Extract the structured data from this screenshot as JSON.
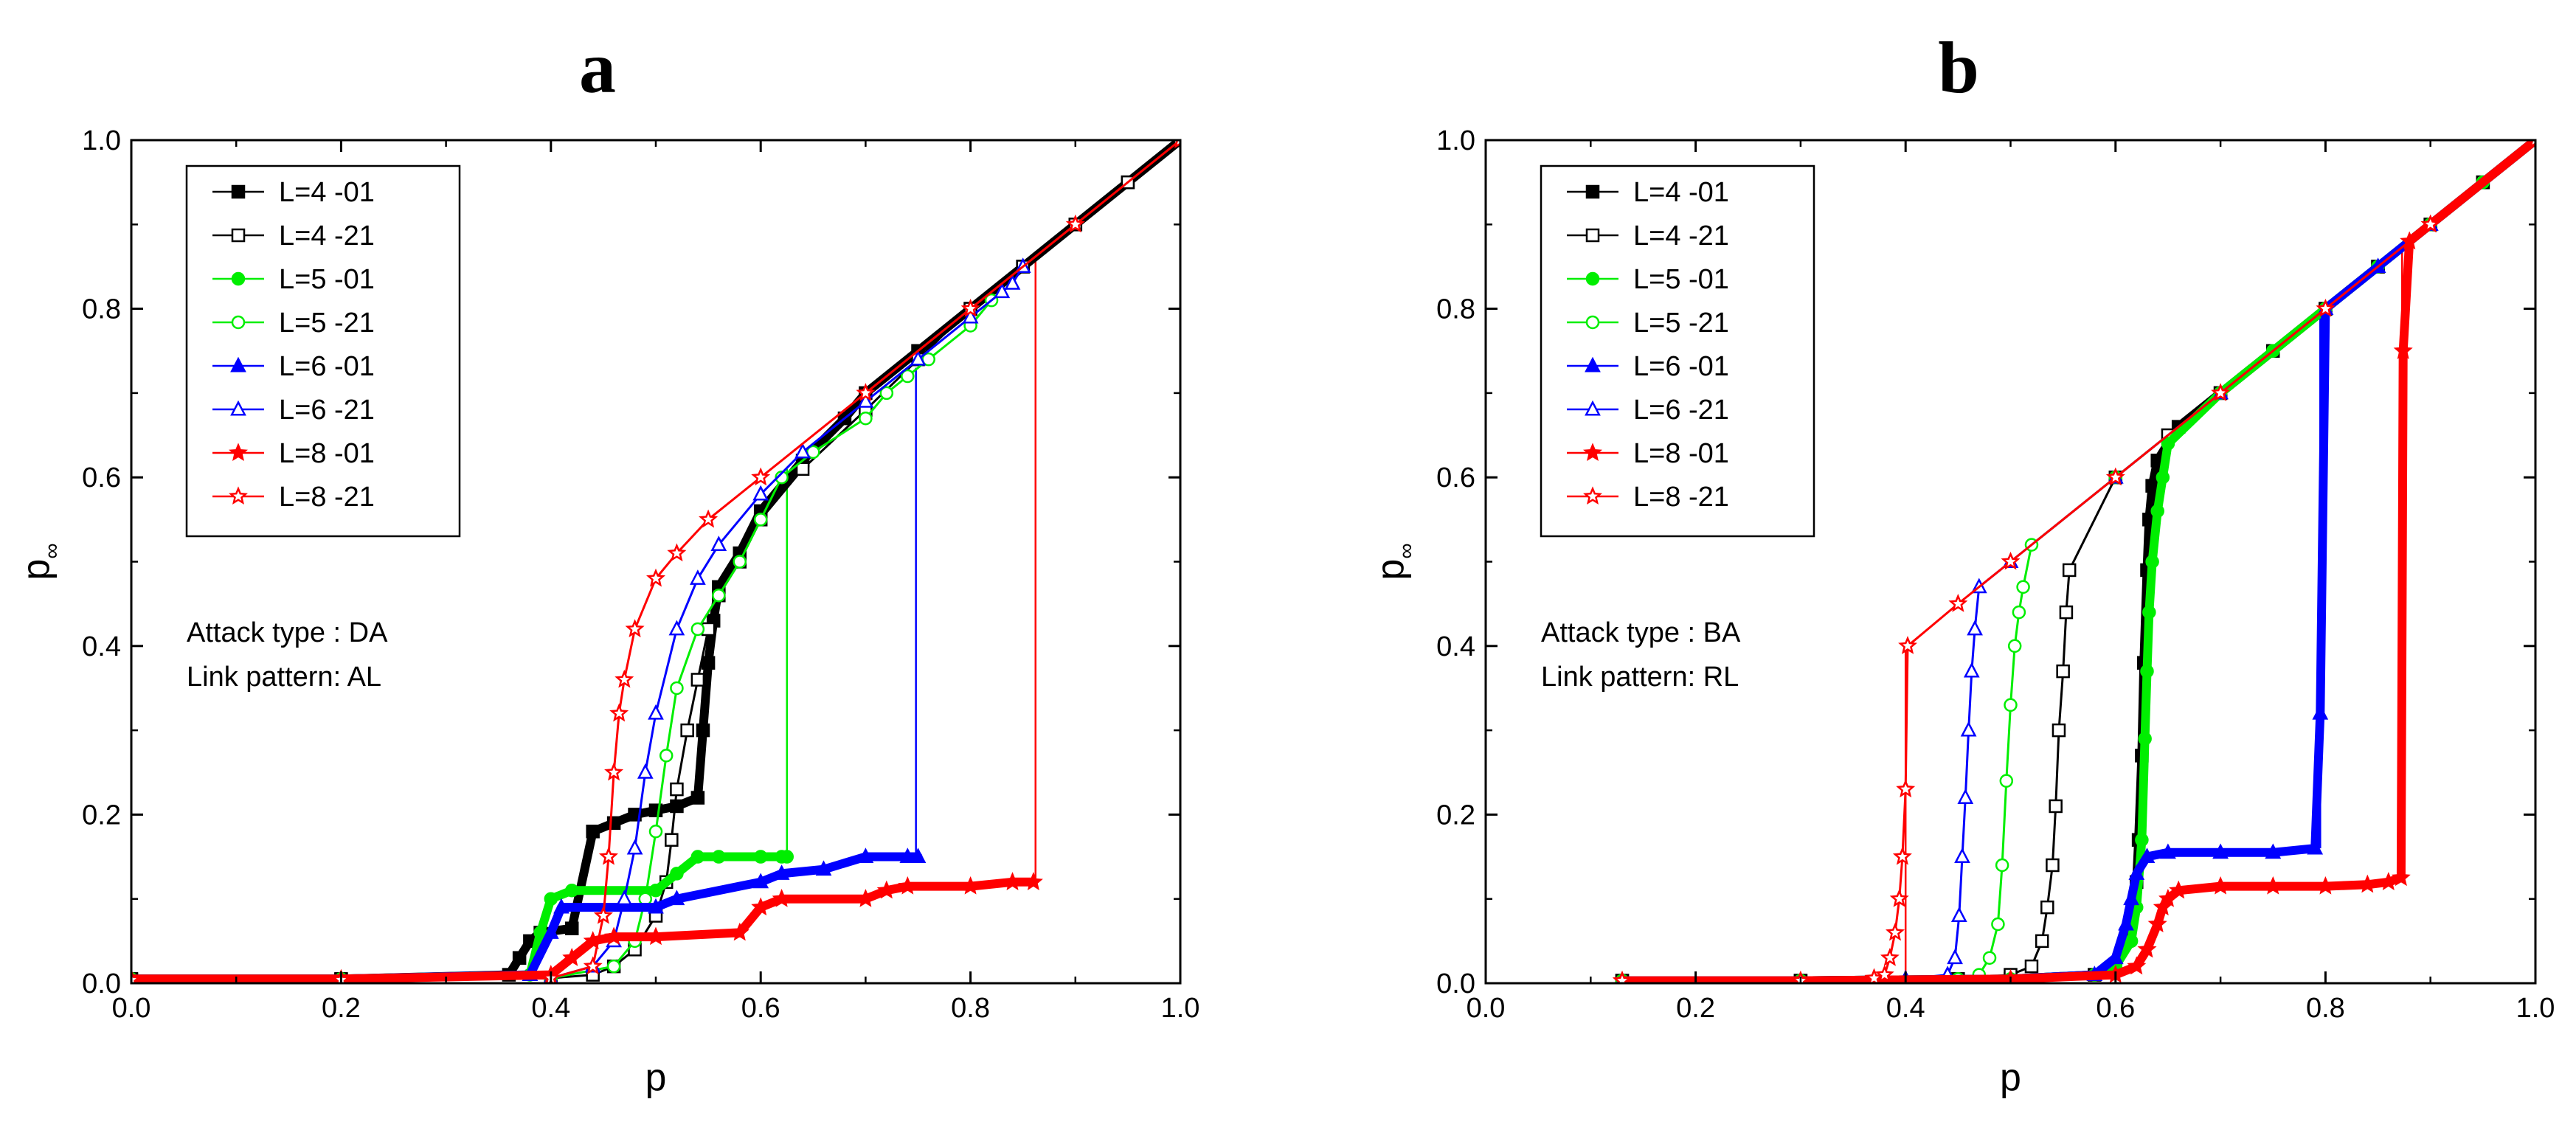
{
  "chart_data": [
    {
      "type": "line",
      "panel_label": "a",
      "xlabel": "p",
      "ylabel": "p",
      "ylabel_subscript": "∞",
      "xlim": [
        0.0,
        1.0
      ],
      "ylim": [
        0.0,
        1.0
      ],
      "x_ticks": [
        "0.0",
        "0.2",
        "0.4",
        "0.6",
        "0.8",
        "1.0"
      ],
      "y_ticks": [
        "0.0",
        "0.2",
        "0.4",
        "0.6",
        "0.8",
        "1.0"
      ],
      "grid": false,
      "legend_position": "top-left",
      "annotations": [
        "Attack type : DA",
        "Link pattern: AL"
      ],
      "series": [
        {
          "name": "L=4 -01",
          "color": "#000000",
          "marker": "square-filled",
          "x": [
            0.0,
            0.2,
            0.36,
            0.37,
            0.38,
            0.39,
            0.42,
            0.44,
            0.46,
            0.48,
            0.5,
            0.52,
            0.54,
            0.545,
            0.55,
            0.555,
            0.56,
            0.58,
            0.6,
            0.64,
            0.68,
            0.7,
            0.75,
            0.8,
            0.85,
            0.9,
            0.95,
            1.0
          ],
          "y": [
            0.005,
            0.005,
            0.01,
            0.03,
            0.05,
            0.06,
            0.065,
            0.18,
            0.19,
            0.2,
            0.205,
            0.21,
            0.22,
            0.3,
            0.38,
            0.43,
            0.47,
            0.51,
            0.56,
            0.62,
            0.67,
            0.7,
            0.75,
            0.8,
            0.85,
            0.9,
            0.95,
            1.0
          ]
        },
        {
          "name": "L=4 -21",
          "color": "#000000",
          "marker": "square-open",
          "x": [
            0.0,
            0.2,
            0.4,
            0.44,
            0.46,
            0.48,
            0.5,
            0.51,
            0.515,
            0.52,
            0.53,
            0.54,
            0.55,
            0.56,
            0.58,
            0.6,
            0.64,
            0.7,
            0.75,
            0.8,
            0.85,
            0.9,
            0.95,
            1.0
          ],
          "y": [
            0.004,
            0.004,
            0.006,
            0.01,
            0.02,
            0.04,
            0.08,
            0.12,
            0.17,
            0.23,
            0.3,
            0.36,
            0.42,
            0.46,
            0.5,
            0.55,
            0.61,
            0.68,
            0.74,
            0.8,
            0.85,
            0.9,
            0.95,
            1.0
          ]
        },
        {
          "name": "L=5 -01",
          "color": "#00ee00",
          "marker": "circle-filled",
          "x": [
            0.0,
            0.2,
            0.38,
            0.39,
            0.4,
            0.42,
            0.5,
            0.52,
            0.54,
            0.56,
            0.6,
            0.62,
            0.625
          ],
          "y": [
            0.005,
            0.005,
            0.01,
            0.06,
            0.1,
            0.11,
            0.11,
            0.13,
            0.15,
            0.15,
            0.15,
            0.15,
            0.15
          ]
        },
        {
          "name": "L=5 -21",
          "color": "#00ee00",
          "marker": "circle-open",
          "x": [
            0.0,
            0.2,
            0.4,
            0.46,
            0.48,
            0.49,
            0.5,
            0.51,
            0.52,
            0.54,
            0.56,
            0.58,
            0.6,
            0.62,
            0.65,
            0.7,
            0.72,
            0.74,
            0.76,
            0.8,
            0.82
          ],
          "y": [
            0.004,
            0.004,
            0.006,
            0.02,
            0.05,
            0.1,
            0.18,
            0.27,
            0.35,
            0.42,
            0.46,
            0.5,
            0.55,
            0.6,
            0.63,
            0.67,
            0.7,
            0.72,
            0.74,
            0.78,
            0.81
          ]
        },
        {
          "name": "L=6 -01",
          "color": "#0000ff",
          "marker": "triangle-filled",
          "x": [
            0.0,
            0.2,
            0.38,
            0.4,
            0.41,
            0.5,
            0.52,
            0.6,
            0.62,
            0.66,
            0.7,
            0.74,
            0.75
          ],
          "y": [
            0.005,
            0.005,
            0.01,
            0.06,
            0.09,
            0.09,
            0.1,
            0.12,
            0.13,
            0.135,
            0.15,
            0.15,
            0.15
          ]
        },
        {
          "name": "L=6 -21",
          "color": "#0000ff",
          "marker": "triangle-open",
          "x": [
            0.0,
            0.2,
            0.4,
            0.44,
            0.46,
            0.47,
            0.48,
            0.49,
            0.5,
            0.52,
            0.54,
            0.56,
            0.6,
            0.64,
            0.7,
            0.75,
            0.8,
            0.83,
            0.84,
            0.85
          ],
          "y": [
            0.004,
            0.004,
            0.006,
            0.02,
            0.05,
            0.1,
            0.16,
            0.25,
            0.32,
            0.42,
            0.48,
            0.52,
            0.58,
            0.63,
            0.69,
            0.74,
            0.79,
            0.82,
            0.83,
            0.85
          ]
        },
        {
          "name": "L=8 -01",
          "color": "#ff0000",
          "marker": "star-filled",
          "x": [
            0.0,
            0.2,
            0.4,
            0.42,
            0.44,
            0.46,
            0.5,
            0.58,
            0.6,
            0.62,
            0.7,
            0.72,
            0.74,
            0.8,
            0.84,
            0.86
          ],
          "y": [
            0.005,
            0.005,
            0.01,
            0.03,
            0.05,
            0.055,
            0.055,
            0.06,
            0.09,
            0.1,
            0.1,
            0.11,
            0.115,
            0.115,
            0.12,
            0.12
          ]
        },
        {
          "name": "L=8 -21",
          "color": "#ff0000",
          "marker": "star-open",
          "x": [
            0.0,
            0.2,
            0.4,
            0.44,
            0.45,
            0.455,
            0.46,
            0.465,
            0.47,
            0.48,
            0.5,
            0.52,
            0.55,
            0.6,
            0.7,
            0.8,
            0.9,
            1.0
          ],
          "y": [
            0.004,
            0.004,
            0.006,
            0.02,
            0.08,
            0.15,
            0.25,
            0.32,
            0.36,
            0.42,
            0.48,
            0.51,
            0.55,
            0.6,
            0.7,
            0.8,
            0.9,
            1.0
          ]
        }
      ],
      "drop_lines": [
        {
          "color": "#00ee00",
          "x": 0.625,
          "y_from": 0.15,
          "y_to": 0.61
        },
        {
          "color": "#0000ff",
          "x": 0.748,
          "y_from": 0.15,
          "y_to": 0.73
        },
        {
          "color": "#ff0000",
          "x": 0.862,
          "y_from": 0.12,
          "y_to": 0.86
        }
      ]
    },
    {
      "type": "line",
      "panel_label": "b",
      "xlabel": "p",
      "ylabel": "p",
      "ylabel_subscript": "∞",
      "xlim": [
        0.0,
        1.0
      ],
      "ylim": [
        0.0,
        1.0
      ],
      "x_ticks": [
        "0.0",
        "0.2",
        "0.4",
        "0.6",
        "0.8",
        "1.0"
      ],
      "y_ticks": [
        "0.0",
        "0.2",
        "0.4",
        "0.6",
        "0.8",
        "1.0"
      ],
      "grid": false,
      "legend_position": "top-left",
      "annotations": [
        "Attack type : BA",
        "Link pattern: RL"
      ],
      "series": [
        {
          "name": "L=4 -01",
          "color": "#000000",
          "marker": "square-filled",
          "x": [
            0.13,
            0.3,
            0.5,
            0.58,
            0.6,
            0.61,
            0.615,
            0.62,
            0.622,
            0.625,
            0.627,
            0.63,
            0.632,
            0.635,
            0.64,
            0.66,
            0.7,
            0.75,
            0.8,
            0.85,
            0.9,
            0.95,
            1.0
          ],
          "y": [
            0.003,
            0.003,
            0.005,
            0.01,
            0.02,
            0.05,
            0.08,
            0.12,
            0.17,
            0.27,
            0.38,
            0.49,
            0.55,
            0.59,
            0.62,
            0.66,
            0.7,
            0.75,
            0.8,
            0.85,
            0.9,
            0.95,
            1.0
          ]
        },
        {
          "name": "L=4 -21",
          "color": "#000000",
          "marker": "square-open",
          "x": [
            0.13,
            0.3,
            0.45,
            0.5,
            0.52,
            0.53,
            0.535,
            0.54,
            0.543,
            0.546,
            0.55,
            0.553,
            0.556,
            0.6,
            0.65,
            0.7,
            0.75,
            0.8,
            0.85,
            0.9,
            0.95,
            1.0
          ],
          "y": [
            0.003,
            0.003,
            0.005,
            0.01,
            0.02,
            0.05,
            0.09,
            0.14,
            0.21,
            0.3,
            0.37,
            0.44,
            0.49,
            0.6,
            0.65,
            0.7,
            0.75,
            0.8,
            0.85,
            0.9,
            0.95,
            1.0
          ]
        },
        {
          "name": "L=5 -01",
          "color": "#00ee00",
          "marker": "circle-filled",
          "x": [
            0.13,
            0.3,
            0.5,
            0.58,
            0.6,
            0.615,
            0.62,
            0.625,
            0.628,
            0.63,
            0.632,
            0.635,
            0.64,
            0.645,
            0.65,
            0.7,
            0.75,
            0.8,
            0.85,
            0.9,
            0.95,
            1.0
          ],
          "y": [
            0.003,
            0.003,
            0.005,
            0.01,
            0.02,
            0.05,
            0.09,
            0.17,
            0.29,
            0.37,
            0.44,
            0.5,
            0.56,
            0.6,
            0.64,
            0.7,
            0.75,
            0.8,
            0.85,
            0.9,
            0.95,
            1.0
          ]
        },
        {
          "name": "L=5 -21",
          "color": "#00ee00",
          "marker": "circle-open",
          "x": [
            0.13,
            0.3,
            0.45,
            0.47,
            0.48,
            0.488,
            0.492,
            0.496,
            0.5,
            0.504,
            0.508,
            0.512,
            0.52,
            0.6,
            0.7,
            0.8,
            0.9,
            1.0
          ],
          "y": [
            0.003,
            0.003,
            0.005,
            0.01,
            0.03,
            0.07,
            0.14,
            0.24,
            0.33,
            0.4,
            0.44,
            0.47,
            0.52,
            0.6,
            0.7,
            0.8,
            0.9,
            1.0
          ]
        },
        {
          "name": "L=6 -01",
          "color": "#0000ff",
          "marker": "triangle-filled",
          "x": [
            0.13,
            0.3,
            0.5,
            0.58,
            0.6,
            0.61,
            0.615,
            0.62,
            0.63,
            0.65,
            0.7,
            0.75,
            0.79,
            0.795,
            0.8,
            0.85,
            0.9,
            1.0
          ],
          "y": [
            0.003,
            0.003,
            0.005,
            0.01,
            0.03,
            0.07,
            0.1,
            0.13,
            0.15,
            0.155,
            0.155,
            0.155,
            0.16,
            0.32,
            0.8,
            0.85,
            0.9,
            1.0
          ]
        },
        {
          "name": "L=6 -21",
          "color": "#0000ff",
          "marker": "triangle-open",
          "x": [
            0.13,
            0.3,
            0.4,
            0.44,
            0.447,
            0.451,
            0.454,
            0.457,
            0.46,
            0.463,
            0.466,
            0.47,
            0.5,
            0.6,
            0.7,
            0.8,
            0.9,
            1.0
          ],
          "y": [
            0.003,
            0.003,
            0.005,
            0.01,
            0.03,
            0.08,
            0.15,
            0.22,
            0.3,
            0.37,
            0.42,
            0.47,
            0.5,
            0.6,
            0.7,
            0.8,
            0.9,
            1.0
          ]
        },
        {
          "name": "L=8 -01",
          "color": "#ff0000",
          "marker": "star-filled",
          "x": [
            0.13,
            0.3,
            0.5,
            0.6,
            0.62,
            0.63,
            0.64,
            0.645,
            0.65,
            0.66,
            0.7,
            0.75,
            0.8,
            0.84,
            0.86,
            0.872,
            0.874,
            0.88,
            0.9,
            1.0
          ],
          "y": [
            0.003,
            0.003,
            0.005,
            0.01,
            0.02,
            0.04,
            0.07,
            0.09,
            0.1,
            0.11,
            0.115,
            0.115,
            0.115,
            0.117,
            0.12,
            0.125,
            0.75,
            0.88,
            0.9,
            1.0
          ]
        },
        {
          "name": "L=8 -21",
          "color": "#ff0000",
          "marker": "star-open",
          "x": [
            0.13,
            0.3,
            0.37,
            0.38,
            0.385,
            0.39,
            0.394,
            0.397,
            0.4,
            0.402,
            0.45,
            0.5,
            0.6,
            0.7,
            0.8,
            0.9,
            1.0
          ],
          "y": [
            0.003,
            0.003,
            0.006,
            0.01,
            0.03,
            0.06,
            0.1,
            0.15,
            0.23,
            0.4,
            0.45,
            0.5,
            0.6,
            0.7,
            0.8,
            0.9,
            1.0
          ]
        }
      ],
      "drop_lines": [
        {
          "color": "#0000ff",
          "x": 0.795,
          "y_from": 0.16,
          "y_to": 0.79
        },
        {
          "color": "#ff0000",
          "x": 0.873,
          "y_from": 0.125,
          "y_to": 0.87
        },
        {
          "color": "#ff0000",
          "x": 0.4,
          "y_from": 0.0,
          "y_to": 0.4
        }
      ]
    }
  ]
}
